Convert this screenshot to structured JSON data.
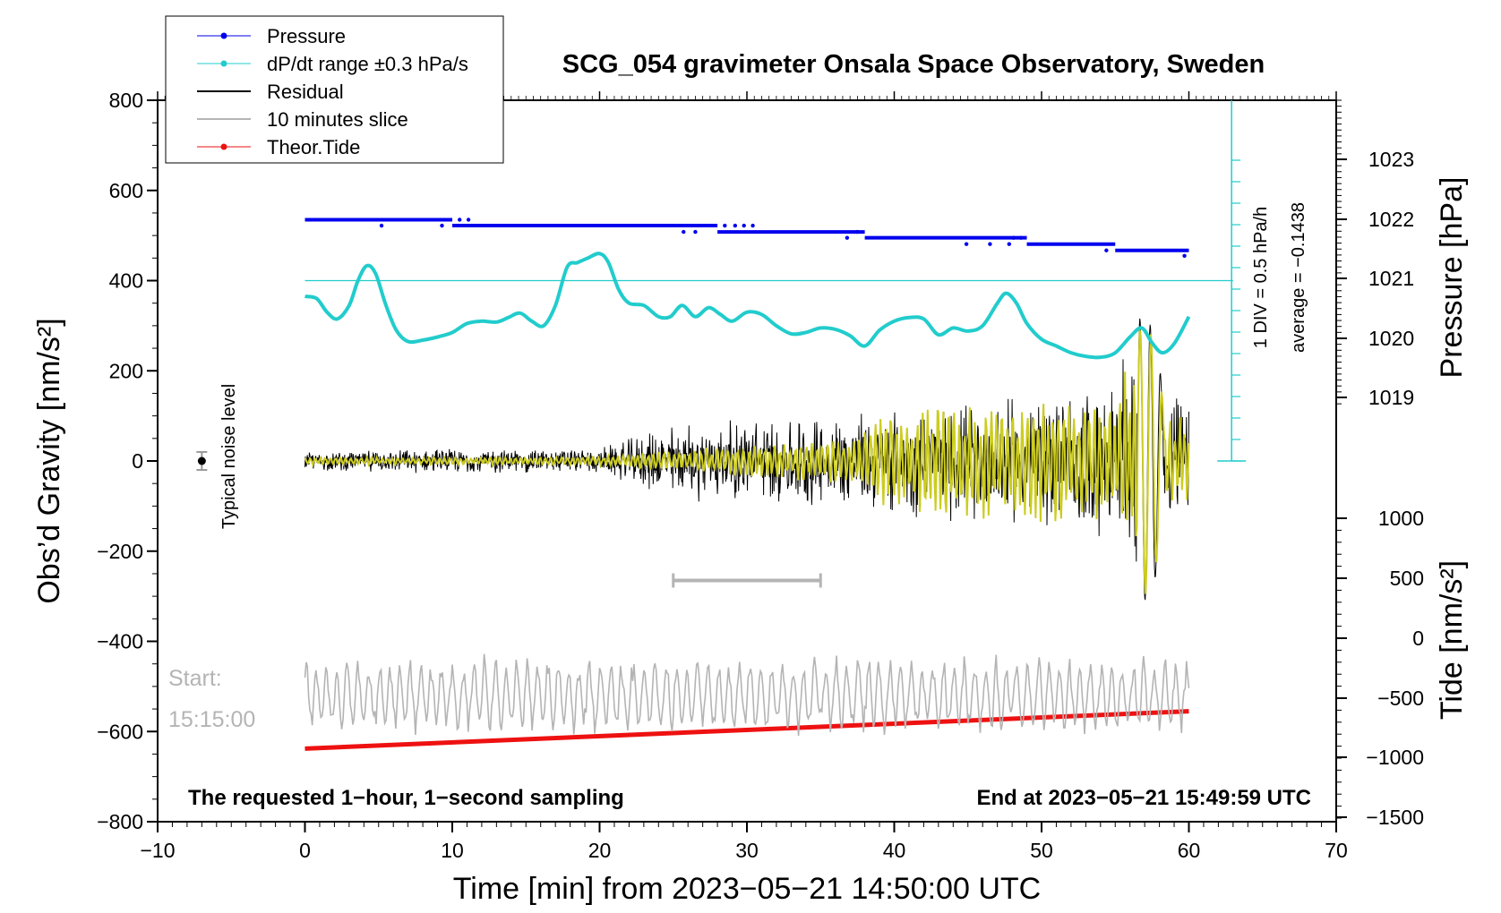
{
  "chart_data": {
    "type": "line",
    "title": "SCG_054 gravimeter Onsala Space Observatory, Sweden",
    "xlabel": "Time [min] from 2023−05−21 14:50:00 UTC",
    "ylabel_left": "Obs’d Gravity [nm/s²]",
    "ylabel_right_top": "Pressure [hPa]",
    "ylabel_right_bottom": "Tide [nm/s²]",
    "xlim": [
      -10,
      70
    ],
    "ylim": [
      -800,
      800
    ],
    "x_ticks": [
      "−10",
      "0",
      "10",
      "20",
      "30",
      "40",
      "50",
      "60",
      "70"
    ],
    "y_ticks": [
      "800",
      "600",
      "400",
      "200",
      "0",
      "−200",
      "−400",
      "−600",
      "−800"
    ],
    "pressure_ticks": [
      "1023",
      "1022",
      "1021",
      "1020",
      "1019"
    ],
    "tide_ticks": [
      "1000",
      "500",
      "0",
      "−500",
      "−1000",
      "−1500"
    ],
    "legend": [
      "Pressure",
      "dP/dt range ±0.3 hPa/s",
      "Residual",
      "10 minutes slice",
      "Theor.Tide"
    ],
    "legend_position": "top-left",
    "footer_left": "The requested 1−hour, 1−second sampling",
    "footer_right": "End at 2023−05−21 15:49:59 UTC",
    "noise_label": "Typical noise level",
    "slice_start_label": "Start:",
    "slice_start_time": "15:15:00",
    "div_label": "1 DIV = 0.5 hPa/h",
    "average_label": "average = −0.1438",
    "colors": {
      "pressure": "#0000ee",
      "dpdt": "#22cccc",
      "residual": "#000000",
      "filtered": "#cccc22",
      "slice": "#b4b4b4",
      "tide": "#ee1111"
    },
    "series": {
      "pressure_steps": [
        {
          "x0": 0,
          "x1": 10,
          "y": 535
        },
        {
          "x0": 10,
          "x1": 28,
          "y": 522
        },
        {
          "x0": 28,
          "x1": 38,
          "y": 508
        },
        {
          "x0": 38,
          "x1": 49,
          "y": 495
        },
        {
          "x0": 49,
          "x1": 55,
          "y": 481
        },
        {
          "x0": 55,
          "x1": 60,
          "y": 467
        }
      ],
      "dpdt_reference_y": 400,
      "dpdt_curve": [
        [
          0,
          365
        ],
        [
          0.8,
          360
        ],
        [
          1.5,
          330
        ],
        [
          2.2,
          315
        ],
        [
          3.0,
          345
        ],
        [
          3.6,
          400
        ],
        [
          4.2,
          433
        ],
        [
          4.8,
          415
        ],
        [
          5.5,
          345
        ],
        [
          6.2,
          290
        ],
        [
          7.0,
          265
        ],
        [
          8.0,
          268
        ],
        [
          9.0,
          275
        ],
        [
          10.0,
          285
        ],
        [
          11.0,
          305
        ],
        [
          12.0,
          310
        ],
        [
          13.0,
          308
        ],
        [
          13.8,
          318
        ],
        [
          14.6,
          328
        ],
        [
          15.4,
          310
        ],
        [
          16.2,
          300
        ],
        [
          17.0,
          345
        ],
        [
          17.8,
          430
        ],
        [
          18.5,
          440
        ],
        [
          19.2,
          450
        ],
        [
          20.0,
          460
        ],
        [
          20.6,
          440
        ],
        [
          21.3,
          380
        ],
        [
          22.0,
          350
        ],
        [
          23.0,
          345
        ],
        [
          24.0,
          320
        ],
        [
          24.8,
          320
        ],
        [
          25.6,
          345
        ],
        [
          26.5,
          320
        ],
        [
          27.4,
          340
        ],
        [
          28.2,
          325
        ],
        [
          29.0,
          310
        ],
        [
          30.0,
          330
        ],
        [
          31.0,
          325
        ],
        [
          32.0,
          300
        ],
        [
          33.0,
          282
        ],
        [
          34.0,
          285
        ],
        [
          35.0,
          295
        ],
        [
          36.0,
          292
        ],
        [
          37.0,
          278
        ],
        [
          38.0,
          255
        ],
        [
          39.0,
          290
        ],
        [
          40.0,
          310
        ],
        [
          41.0,
          318
        ],
        [
          42.0,
          315
        ],
        [
          43.0,
          280
        ],
        [
          44.0,
          295
        ],
        [
          45.0,
          288
        ],
        [
          46.0,
          300
        ],
        [
          47.0,
          350
        ],
        [
          47.6,
          372
        ],
        [
          48.3,
          350
        ],
        [
          49.0,
          305
        ],
        [
          50.0,
          270
        ],
        [
          51.0,
          255
        ],
        [
          52.0,
          240
        ],
        [
          53.0,
          232
        ],
        [
          54.0,
          230
        ],
        [
          55.0,
          240
        ],
        [
          56.0,
          275
        ],
        [
          56.8,
          295
        ],
        [
          57.5,
          262
        ],
        [
          58.2,
          240
        ],
        [
          59.0,
          260
        ],
        [
          60.0,
          320
        ]
      ],
      "residual_amplitude": [
        [
          0,
          22
        ],
        [
          10,
          30
        ],
        [
          20,
          30
        ],
        [
          25,
          90
        ],
        [
          35,
          110
        ],
        [
          45,
          140
        ],
        [
          55,
          180
        ],
        [
          56.5,
          320
        ],
        [
          57.5,
          300
        ],
        [
          58.2,
          170
        ],
        [
          60,
          140
        ]
      ],
      "filtered_amplitude": [
        [
          0,
          8
        ],
        [
          20,
          10
        ],
        [
          25,
          25
        ],
        [
          37,
          55
        ],
        [
          40,
          120
        ],
        [
          55,
          150
        ],
        [
          56.8,
          290
        ],
        [
          57.5,
          270
        ],
        [
          58.3,
          120
        ],
        [
          60,
          100
        ]
      ],
      "slice_bracket": {
        "x0": 25,
        "x1": 35,
        "y": -265
      },
      "slice_curve_offset": -520,
      "slice_curve_amplitude": 95,
      "tide_line": [
        [
          0,
          -638
        ],
        [
          60,
          -555
        ]
      ],
      "noise_point": {
        "x": -7,
        "y": 0,
        "err": 20
      }
    }
  }
}
